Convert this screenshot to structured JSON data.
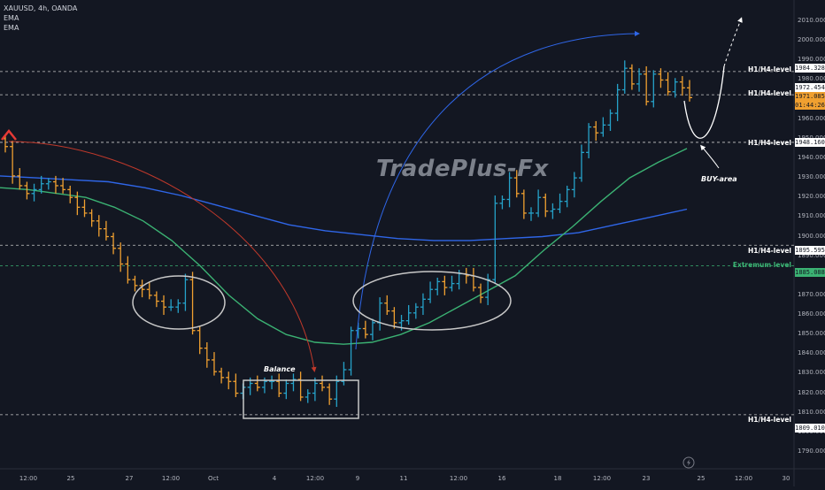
{
  "legend": {
    "symbol": "XAUUSD, 4h, OANDA",
    "ema1": "EMA",
    "ema2": "EMA"
  },
  "watermark": "TradePlus-Fx",
  "colors": {
    "background": "#131722",
    "bull": "#26a2c9",
    "bear": "#f0a030",
    "ema_fast": "#3bb273",
    "ema_slow": "#2f66e8",
    "level": "#c8c8c8",
    "extremum": "#3bb273",
    "arrow_red": "#c0392b",
    "arrow_blue": "#2f66e8"
  },
  "annotations": {
    "balance": "Balance",
    "buy_area": "BUY-area"
  },
  "price_tags": {
    "level_1984": "1984.328",
    "level_1972": "1972.454",
    "current_price": "1971.085",
    "countdown": "01:44:26",
    "level_1948": "1948.160",
    "level_1895": "1895.595",
    "extremum": "1885.088",
    "level_1809": "1809.010"
  },
  "chart_data": {
    "type": "ohlc",
    "symbol": "XAUUSD",
    "timeframe": "4h",
    "ylim": [
      1785,
      2015
    ],
    "y_ticks": [
      1790,
      1800,
      1810,
      1820,
      1830,
      1840,
      1850,
      1860,
      1870,
      1880,
      1890,
      1900,
      1910,
      1920,
      1930,
      1940,
      1950,
      1960,
      1970,
      1980,
      1990,
      2000,
      2010
    ],
    "x_ticks": [
      "12:00",
      "25",
      "27",
      "12:00",
      "Oct",
      "4",
      "12:00",
      "9",
      "11",
      "12:00",
      "16",
      "18",
      "12:00",
      "23",
      "25",
      "12:00",
      "30"
    ],
    "levels": [
      {
        "label": "H1/H4-level",
        "price": 1984.328
      },
      {
        "label": "H1/H4-level",
        "price": 1972.454
      },
      {
        "label": "H1/H4-level",
        "price": 1948.16
      },
      {
        "label": "H1/H4-level",
        "price": 1895.595
      },
      {
        "label": "Extremum level",
        "price": 1885.088
      },
      {
        "label": "H1/H4-level",
        "price": 1809.01
      }
    ],
    "current_price": 1971.085,
    "closes": [
      1946,
      1931,
      1926,
      1922,
      1924,
      1927,
      1928,
      1926,
      1924,
      1920,
      1915,
      1912,
      1908,
      1904,
      1900,
      1894,
      1886,
      1878,
      1875,
      1873,
      1870,
      1867,
      1864,
      1864,
      1866,
      1878,
      1852,
      1843,
      1837,
      1831,
      1828,
      1826,
      1820,
      1823,
      1825,
      1823,
      1826,
      1826,
      1820,
      1825,
      1827,
      1818,
      1820,
      1825,
      1823,
      1817,
      1826,
      1832,
      1852,
      1853,
      1850,
      1856,
      1866,
      1862,
      1856,
      1857,
      1861,
      1864,
      1868,
      1873,
      1877,
      1874,
      1876,
      1881,
      1880,
      1874,
      1869,
      1878,
      1917,
      1919,
      1930,
      1922,
      1912,
      1912,
      1920,
      1913,
      1914,
      1918,
      1924,
      1930,
      1943,
      1956,
      1953,
      1957,
      1963,
      1975,
      1986,
      1978,
      1983,
      1969,
      1983,
      1980,
      1974,
      1979,
      1976,
      1971
    ],
    "ema_fast": {
      "name": "EMA",
      "values": [
        1925,
        1924,
        1922,
        1920,
        1915,
        1908,
        1898,
        1885,
        1870,
        1858,
        1850,
        1846,
        1845,
        1846,
        1850,
        1856,
        1864,
        1872,
        1880,
        1893,
        1905,
        1918,
        1930,
        1938,
        1945
      ]
    },
    "ema_slow": {
      "name": "EMA",
      "values": [
        1931,
        1930,
        1929,
        1928,
        1925,
        1921,
        1916,
        1911,
        1906,
        1903,
        1901,
        1899,
        1898,
        1898,
        1899,
        1900,
        1902,
        1906,
        1910,
        1914
      ]
    }
  }
}
